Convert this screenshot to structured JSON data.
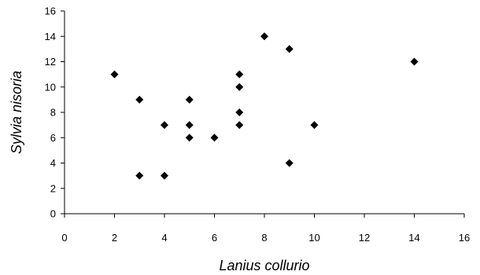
{
  "chart_data": {
    "type": "scatter",
    "title": "",
    "xlabel": "Lanius collurio",
    "ylabel": "Sylvia nisoria",
    "xlim": [
      0,
      16
    ],
    "ylim": [
      0,
      16
    ],
    "x_ticks": [
      0,
      2,
      4,
      6,
      8,
      10,
      12,
      14,
      16
    ],
    "y_ticks": [
      0,
      2,
      4,
      6,
      8,
      10,
      12,
      14,
      16
    ],
    "grid": false,
    "marker": "diamond",
    "marker_color": "#000000",
    "points": [
      {
        "x": 2,
        "y": 11
      },
      {
        "x": 3,
        "y": 9
      },
      {
        "x": 3,
        "y": 3
      },
      {
        "x": 4,
        "y": 7
      },
      {
        "x": 4,
        "y": 3
      },
      {
        "x": 5,
        "y": 9
      },
      {
        "x": 5,
        "y": 7
      },
      {
        "x": 5,
        "y": 6
      },
      {
        "x": 6,
        "y": 6
      },
      {
        "x": 7,
        "y": 11
      },
      {
        "x": 7,
        "y": 10
      },
      {
        "x": 7,
        "y": 8
      },
      {
        "x": 7,
        "y": 7
      },
      {
        "x": 8,
        "y": 14
      },
      {
        "x": 9,
        "y": 13
      },
      {
        "x": 9,
        "y": 4
      },
      {
        "x": 10,
        "y": 7
      },
      {
        "x": 14,
        "y": 12
      }
    ]
  }
}
